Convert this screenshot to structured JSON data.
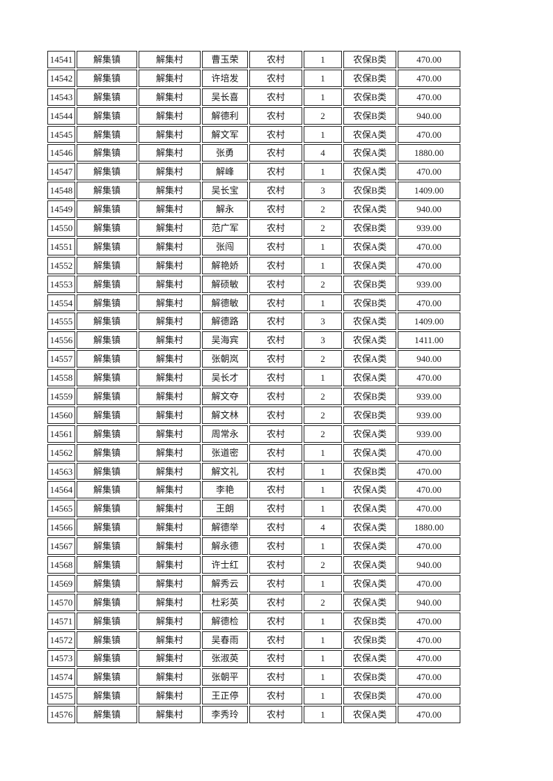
{
  "page": {
    "background": "#ffffff",
    "text_color": "#1a1a1a",
    "border_color": "#1c1c1c"
  },
  "table": {
    "column_keys": [
      "id",
      "town",
      "village",
      "name",
      "category",
      "count",
      "insurance-type",
      "amount"
    ],
    "rows": [
      [
        "14541",
        "解集镇",
        "解集村",
        "曹玉荣",
        "农村",
        "1",
        "农保B类",
        "470.00"
      ],
      [
        "14542",
        "解集镇",
        "解集村",
        "许培发",
        "农村",
        "1",
        "农保B类",
        "470.00"
      ],
      [
        "14543",
        "解集镇",
        "解集村",
        "吴长喜",
        "农村",
        "1",
        "农保B类",
        "470.00"
      ],
      [
        "14544",
        "解集镇",
        "解集村",
        "解德利",
        "农村",
        "2",
        "农保B类",
        "940.00"
      ],
      [
        "14545",
        "解集镇",
        "解集村",
        "解文军",
        "农村",
        "1",
        "农保A类",
        "470.00"
      ],
      [
        "14546",
        "解集镇",
        "解集村",
        "张勇",
        "农村",
        "4",
        "农保A类",
        "1880.00"
      ],
      [
        "14547",
        "解集镇",
        "解集村",
        "解峰",
        "农村",
        "1",
        "农保A类",
        "470.00"
      ],
      [
        "14548",
        "解集镇",
        "解集村",
        "吴长宝",
        "农村",
        "3",
        "农保B类",
        "1409.00"
      ],
      [
        "14549",
        "解集镇",
        "解集村",
        "解永",
        "农村",
        "2",
        "农保A类",
        "940.00"
      ],
      [
        "14550",
        "解集镇",
        "解集村",
        "范广军",
        "农村",
        "2",
        "农保B类",
        "939.00"
      ],
      [
        "14551",
        "解集镇",
        "解集村",
        "张闯",
        "农村",
        "1",
        "农保A类",
        "470.00"
      ],
      [
        "14552",
        "解集镇",
        "解集村",
        "解艳娇",
        "农村",
        "1",
        "农保A类",
        "470.00"
      ],
      [
        "14553",
        "解集镇",
        "解集村",
        "解硕敏",
        "农村",
        "2",
        "农保B类",
        "939.00"
      ],
      [
        "14554",
        "解集镇",
        "解集村",
        "解德敏",
        "农村",
        "1",
        "农保B类",
        "470.00"
      ],
      [
        "14555",
        "解集镇",
        "解集村",
        "解德路",
        "农村",
        "3",
        "农保A类",
        "1409.00"
      ],
      [
        "14556",
        "解集镇",
        "解集村",
        "吴海宾",
        "农村",
        "3",
        "农保A类",
        "1411.00"
      ],
      [
        "14557",
        "解集镇",
        "解集村",
        "张朝岚",
        "农村",
        "2",
        "农保A类",
        "940.00"
      ],
      [
        "14558",
        "解集镇",
        "解集村",
        "吴长才",
        "农村",
        "1",
        "农保A类",
        "470.00"
      ],
      [
        "14559",
        "解集镇",
        "解集村",
        "解文夺",
        "农村",
        "2",
        "农保B类",
        "939.00"
      ],
      [
        "14560",
        "解集镇",
        "解集村",
        "解文林",
        "农村",
        "2",
        "农保B类",
        "939.00"
      ],
      [
        "14561",
        "解集镇",
        "解集村",
        "周常永",
        "农村",
        "2",
        "农保A类",
        "939.00"
      ],
      [
        "14562",
        "解集镇",
        "解集村",
        "张道密",
        "农村",
        "1",
        "农保A类",
        "470.00"
      ],
      [
        "14563",
        "解集镇",
        "解集村",
        "解文礼",
        "农村",
        "1",
        "农保B类",
        "470.00"
      ],
      [
        "14564",
        "解集镇",
        "解集村",
        "李艳",
        "农村",
        "1",
        "农保A类",
        "470.00"
      ],
      [
        "14565",
        "解集镇",
        "解集村",
        "王朗",
        "农村",
        "1",
        "农保A类",
        "470.00"
      ],
      [
        "14566",
        "解集镇",
        "解集村",
        "解德举",
        "农村",
        "4",
        "农保A类",
        "1880.00"
      ],
      [
        "14567",
        "解集镇",
        "解集村",
        "解永德",
        "农村",
        "1",
        "农保A类",
        "470.00"
      ],
      [
        "14568",
        "解集镇",
        "解集村",
        "许士红",
        "农村",
        "2",
        "农保A类",
        "940.00"
      ],
      [
        "14569",
        "解集镇",
        "解集村",
        "解秀云",
        "农村",
        "1",
        "农保A类",
        "470.00"
      ],
      [
        "14570",
        "解集镇",
        "解集村",
        "杜彩英",
        "农村",
        "2",
        "农保A类",
        "940.00"
      ],
      [
        "14571",
        "解集镇",
        "解集村",
        "解德检",
        "农村",
        "1",
        "农保B类",
        "470.00"
      ],
      [
        "14572",
        "解集镇",
        "解集村",
        "吴春雨",
        "农村",
        "1",
        "农保B类",
        "470.00"
      ],
      [
        "14573",
        "解集镇",
        "解集村",
        "张淑英",
        "农村",
        "1",
        "农保A类",
        "470.00"
      ],
      [
        "14574",
        "解集镇",
        "解集村",
        "张朝平",
        "农村",
        "1",
        "农保B类",
        "470.00"
      ],
      [
        "14575",
        "解集镇",
        "解集村",
        "王正停",
        "农村",
        "1",
        "农保B类",
        "470.00"
      ],
      [
        "14576",
        "解集镇",
        "解集村",
        "李秀玲",
        "农村",
        "1",
        "农保A类",
        "470.00"
      ]
    ]
  }
}
